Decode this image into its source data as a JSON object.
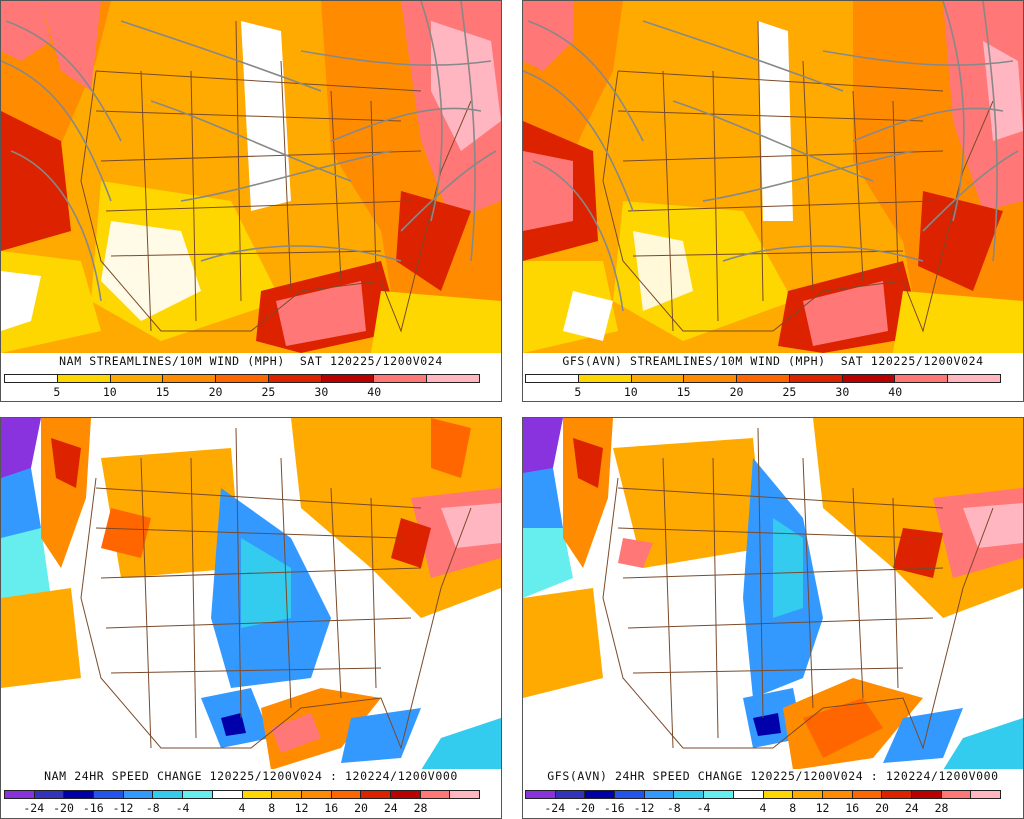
{
  "panels": [
    {
      "id": "nam-wind",
      "title": "NAM STREAMLINES/10M WIND (MPH)  SAT 120225/1200V024",
      "legend": {
        "colors": [
          "#ffffff",
          "#ffd700",
          "#ffaa00",
          "#ff8c00",
          "#ff6600",
          "#dd2200",
          "#bb0000",
          "#ff7777",
          "#ffb6c1"
        ],
        "labels": [
          "5",
          "10",
          "15",
          "20",
          "25",
          "30",
          "40"
        ]
      }
    },
    {
      "id": "gfs-wind",
      "title": "GFS(AVN) STREAMLINES/10M WIND (MPH)  SAT 120225/1200V024",
      "legend": {
        "colors": [
          "#ffffff",
          "#ffd700",
          "#ffaa00",
          "#ff8c00",
          "#ff6600",
          "#dd2200",
          "#bb0000",
          "#ff7777",
          "#ffb6c1"
        ],
        "labels": [
          "5",
          "10",
          "15",
          "20",
          "25",
          "30",
          "40"
        ]
      }
    },
    {
      "id": "nam-change",
      "title": "NAM 24HR SPEED CHANGE 120225/1200V024 : 120224/1200V000",
      "legend": {
        "colors": [
          "#8833dd",
          "#3333bb",
          "#0000aa",
          "#2255ee",
          "#3399ff",
          "#33ccee",
          "#66eeee",
          "#ffffff",
          "#ffd700",
          "#ffaa00",
          "#ff8c00",
          "#ff6600",
          "#dd2200",
          "#bb0000",
          "#ff7777",
          "#ffb6c1"
        ],
        "labels": [
          "-24",
          "-20",
          "-16",
          "-12",
          "-8",
          "-4",
          "4",
          "8",
          "12",
          "16",
          "20",
          "24",
          "28"
        ]
      }
    },
    {
      "id": "gfs-change",
      "title": "GFS(AVN) 24HR SPEED CHANGE 120225/1200V024 : 120224/1200V000",
      "legend": {
        "colors": [
          "#8833dd",
          "#3333bb",
          "#0000aa",
          "#2255ee",
          "#3399ff",
          "#33ccee",
          "#66eeee",
          "#ffffff",
          "#ffd700",
          "#ffaa00",
          "#ff8c00",
          "#ff6600",
          "#dd2200",
          "#bb0000",
          "#ff7777",
          "#ffb6c1"
        ],
        "labels": [
          "-24",
          "-20",
          "-16",
          "-12",
          "-8",
          "-4",
          "4",
          "8",
          "12",
          "16",
          "20",
          "24",
          "28"
        ]
      }
    }
  ]
}
